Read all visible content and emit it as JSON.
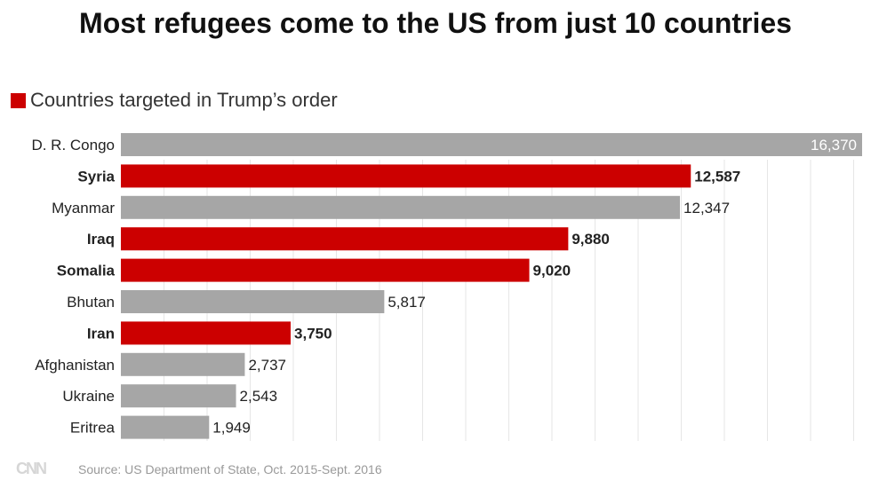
{
  "title": "Most refugees come to the US from just 10 countries",
  "legend": {
    "label": "Countries targeted in Trump’s order",
    "color": "#cc0000"
  },
  "footer": {
    "logo": "CNN",
    "source": "Source: US Department of State, Oct. 2015-Sept. 2016"
  },
  "chart_data": {
    "type": "bar",
    "orientation": "horizontal",
    "title": "Most refugees come to the US from just 10 countries",
    "categories": [
      "D. R. Congo",
      "Syria",
      "Myanmar",
      "Iraq",
      "Somalia",
      "Bhutan",
      "Iran",
      "Afghanistan",
      "Ukraine",
      "Eritrea"
    ],
    "values": [
      16370,
      12587,
      12347,
      9880,
      9020,
      5817,
      3750,
      2737,
      2543,
      1949
    ],
    "labels": [
      "16,370",
      "12,587",
      "12,347",
      "9,880",
      "9,020",
      "5,817",
      "3,750",
      "2,737",
      "2,543",
      "1,949"
    ],
    "targeted": [
      false,
      true,
      false,
      true,
      true,
      false,
      true,
      false,
      false,
      false
    ],
    "colors": {
      "default": "#a6a6a6",
      "targeted": "#cc0000"
    },
    "xlim": [
      0,
      16370
    ],
    "grid": true,
    "legend_position": "top-left"
  }
}
